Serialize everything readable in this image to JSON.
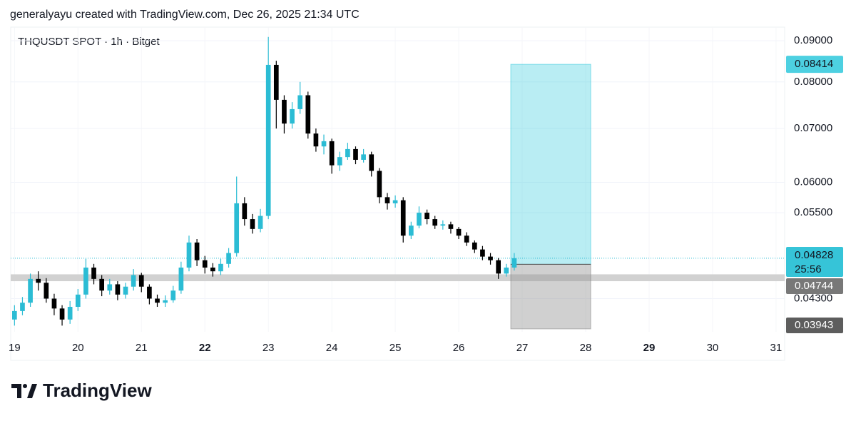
{
  "header": "generalyayu created with TradingView.com, Dec 26, 2025 21:34 UTC",
  "brand": "TradingView",
  "chart_data": {
    "type": "candlestick",
    "title": "THQUSDT SPOT · 1h · Bitget",
    "x": [
      19,
      19.125,
      19.25,
      19.375,
      19.5,
      19.625,
      19.75,
      19.875,
      20,
      20.125,
      20.25,
      20.375,
      20.5,
      20.625,
      20.75,
      20.875,
      21,
      21.125,
      21.25,
      21.375,
      21.5,
      21.625,
      21.75,
      21.875,
      22,
      22.125,
      22.25,
      22.375,
      22.5,
      22.625,
      22.75,
      22.875,
      23,
      23.125,
      23.25,
      23.375,
      23.5,
      23.625,
      23.75,
      23.875,
      24,
      24.125,
      24.25,
      24.375,
      24.5,
      24.625,
      24.75,
      24.875,
      25,
      25.125,
      25.25,
      25.375,
      25.5,
      25.625,
      25.75,
      25.875,
      26,
      26.125,
      26.25,
      26.375,
      26.5,
      26.625,
      26.75,
      26.875
    ],
    "open": [
      0.0405,
      0.0415,
      0.0425,
      0.0455,
      0.045,
      0.043,
      0.0418,
      0.0405,
      0.042,
      0.0435,
      0.047,
      0.0455,
      0.044,
      0.0448,
      0.0435,
      0.0445,
      0.046,
      0.0445,
      0.043,
      0.0425,
      0.0428,
      0.044,
      0.047,
      0.0505,
      0.048,
      0.047,
      0.0465,
      0.0475,
      0.049,
      0.0565,
      0.054,
      0.0525,
      0.0545,
      0.084,
      0.076,
      0.071,
      0.074,
      0.077,
      0.069,
      0.0665,
      0.0675,
      0.063,
      0.0645,
      0.066,
      0.064,
      0.065,
      0.062,
      0.0575,
      0.0565,
      0.057,
      0.0515,
      0.053,
      0.055,
      0.054,
      0.053,
      0.0532,
      0.0525,
      0.0515,
      0.0505,
      0.0495,
      0.0485,
      0.048,
      0.0462,
      0.047
    ],
    "high": [
      0.0422,
      0.0432,
      0.0462,
      0.0465,
      0.0456,
      0.0436,
      0.0422,
      0.0427,
      0.0442,
      0.0482,
      0.0475,
      0.046,
      0.0455,
      0.0452,
      0.045,
      0.0468,
      0.0463,
      0.0448,
      0.0435,
      0.0434,
      0.0446,
      0.0478,
      0.0515,
      0.051,
      0.0486,
      0.0476,
      0.0482,
      0.0497,
      0.061,
      0.0575,
      0.0548,
      0.0556,
      0.091,
      0.085,
      0.077,
      0.0755,
      0.08,
      0.0778,
      0.07,
      0.0688,
      0.068,
      0.0655,
      0.0672,
      0.0665,
      0.066,
      0.0655,
      0.0625,
      0.0582,
      0.0578,
      0.0575,
      0.0536,
      0.056,
      0.0555,
      0.0545,
      0.0538,
      0.0536,
      0.0528,
      0.052,
      0.0508,
      0.05,
      0.049,
      0.0483,
      0.0475,
      0.049
    ],
    "low": [
      0.0398,
      0.041,
      0.042,
      0.044,
      0.0425,
      0.041,
      0.0398,
      0.04,
      0.0415,
      0.043,
      0.0448,
      0.0433,
      0.0435,
      0.0428,
      0.043,
      0.044,
      0.0438,
      0.0423,
      0.042,
      0.042,
      0.0425,
      0.0436,
      0.0465,
      0.0472,
      0.0462,
      0.0458,
      0.046,
      0.047,
      0.0485,
      0.053,
      0.0518,
      0.052,
      0.054,
      0.07,
      0.069,
      0.07,
      0.073,
      0.068,
      0.0655,
      0.065,
      0.0615,
      0.062,
      0.064,
      0.0632,
      0.0635,
      0.061,
      0.0565,
      0.0555,
      0.0558,
      0.0505,
      0.051,
      0.0526,
      0.0532,
      0.0525,
      0.0524,
      0.0518,
      0.051,
      0.05,
      0.049,
      0.048,
      0.0474,
      0.0455,
      0.0458,
      0.0466
    ],
    "close": [
      0.0415,
      0.0425,
      0.0455,
      0.045,
      0.043,
      0.0418,
      0.0405,
      0.042,
      0.0435,
      0.047,
      0.0455,
      0.044,
      0.0448,
      0.0435,
      0.0445,
      0.046,
      0.0445,
      0.043,
      0.0425,
      0.0428,
      0.044,
      0.047,
      0.0505,
      0.048,
      0.047,
      0.0465,
      0.0475,
      0.049,
      0.0565,
      0.054,
      0.0525,
      0.0545,
      0.084,
      0.076,
      0.071,
      0.074,
      0.077,
      0.069,
      0.0665,
      0.0675,
      0.063,
      0.0645,
      0.066,
      0.064,
      0.065,
      0.062,
      0.0575,
      0.0565,
      0.057,
      0.0515,
      0.053,
      0.055,
      0.054,
      0.053,
      0.0532,
      0.0525,
      0.0515,
      0.0505,
      0.0495,
      0.0485,
      0.048,
      0.0462,
      0.047,
      0.04828
    ],
    "up_color": "#2bbcd4",
    "down_color": "#000000",
    "xlim": [
      18.94,
      31.08
    ],
    "xticks": [
      19,
      20,
      21,
      22,
      23,
      24,
      25,
      26,
      27,
      28,
      29,
      30,
      31
    ],
    "xticks_bold": [
      22,
      29
    ],
    "ylim": [
      0.0391,
      0.0936
    ],
    "log_y": true,
    "grid": true,
    "yticks": [
      {
        "value": 0.09,
        "label": "0.09000"
      },
      {
        "value": 0.08,
        "label": "0.08000"
      },
      {
        "value": 0.07,
        "label": "0.07000"
      },
      {
        "value": 0.06,
        "label": "0.06000"
      },
      {
        "value": 0.055,
        "label": "0.05500"
      },
      {
        "value": 0.043,
        "label": "0.04300"
      }
    ],
    "current_price": 0.04828,
    "countdown": "25:56",
    "zone": [
      0.0452,
      0.0461
    ],
    "position": {
      "x": [
        26.82,
        28.08
      ],
      "entry": 0.04744,
      "target": 0.08414,
      "stop": 0.03943
    }
  }
}
